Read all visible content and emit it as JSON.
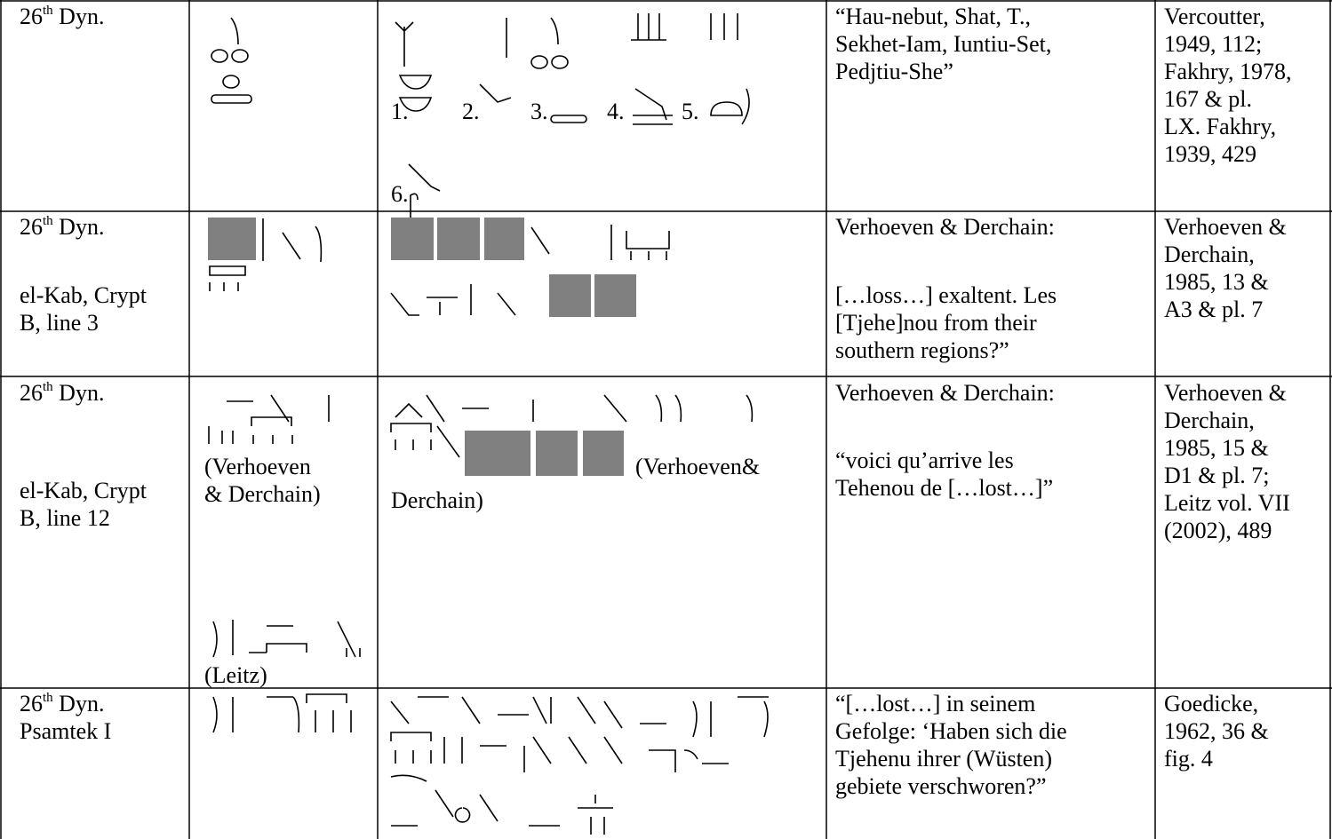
{
  "table": {
    "rows": [
      {
        "dynasty": {
          "num": "26",
          "sup": "th",
          "rest": " Dyn."
        },
        "location": [],
        "transcription_notes": [],
        "variant_labels": [
          "1.",
          "2.",
          "3.",
          "4.",
          "5.",
          "6."
        ],
        "variant_notes": [],
        "translation": [
          [
            "“Hau-nebut, Shat, T.,",
            "Sekhet-Iam, Iuntiu-Set,",
            "Pedjtiu-She”"
          ]
        ],
        "reference": [
          "Vercoutter,",
          "1949, 112;",
          "Fakhry, 1978,",
          "167 & pl.",
          "LX. Fakhry,",
          "1939, 429"
        ]
      },
      {
        "dynasty": {
          "num": "26",
          "sup": "th",
          "rest": " Dyn."
        },
        "location": [
          "el-Kab, Crypt",
          "B, line 3"
        ],
        "transcription_notes": [],
        "variant_labels": [],
        "variant_notes": [],
        "translation": [
          [
            "Verhoeven & Derchain:"
          ],
          [
            "[…loss…] exaltent. Les",
            "[Tjehe]nou from their",
            "southern regions?”"
          ]
        ],
        "reference": [
          "Verhoeven &",
          "Derchain,",
          "1985, 13 &",
          "A3 & pl. 7"
        ]
      },
      {
        "dynasty": {
          "num": "26",
          "sup": "th",
          "rest": " Dyn."
        },
        "location": [
          "el-Kab, Crypt",
          "B, line 12"
        ],
        "transcription_notes": [
          [
            "(Verhoeven",
            "& Derchain)"
          ],
          [
            "(Leitz)"
          ]
        ],
        "variant_labels": [],
        "variant_notes": [
          "(Verhoeven&",
          "Derchain)"
        ],
        "translation": [
          [
            "Verhoeven & Derchain:"
          ],
          [
            "“voici qu’arrive les",
            "Tehenou de […lost…]”"
          ]
        ],
        "reference": [
          "Verhoeven &",
          "Derchain,",
          "1985, 15 &",
          "D1 & pl. 7;",
          "Leitz vol. VII",
          "(2002), 489"
        ]
      },
      {
        "dynasty": {
          "num": "26",
          "sup": "th",
          "rest": " Dyn."
        },
        "location": [
          "Psamtek I"
        ],
        "transcription_notes": [],
        "variant_labels": [],
        "variant_notes": [],
        "translation": [
          [
            "“[…lost…] in seinem",
            "Gefolge: ‘Haben sich die",
            "Tjehenu ihrer (Wüsten)",
            "gebiete verschworen?”"
          ]
        ],
        "reference": [
          "Goedicke,",
          "1962, 36 &",
          "fig. 4"
        ]
      }
    ]
  }
}
